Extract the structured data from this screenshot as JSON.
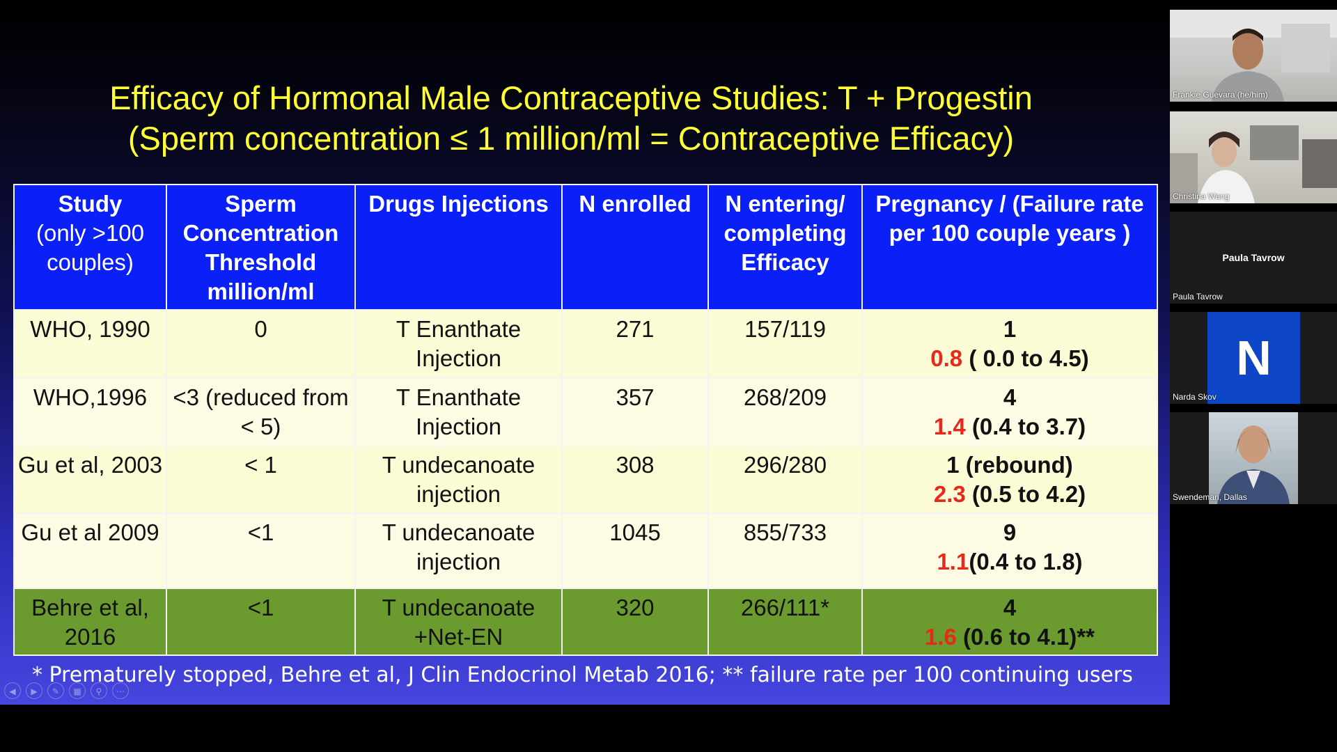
{
  "slide": {
    "title_line1": "Efficacy of Hormonal Male Contraceptive Studies:  T + Progestin",
    "title_line2": "(Sperm concentration  ≤ 1 million/ml = Contraceptive Efficacy)",
    "table": {
      "headers": {
        "study": "Study",
        "study_sub": "(only >100 couples)",
        "sperm": "Sperm Concentration Threshold million/ml",
        "drugs": "Drugs Injections",
        "n_enrolled": "N enrolled",
        "n_entering": "N  entering/ completing Efficacy",
        "pregnancy": "Pregnancy / (Failure  rate  per 100 couple years )"
      },
      "rows": [
        {
          "study": "WHO, 1990",
          "threshold": "0",
          "drug": "T Enanthate Injection",
          "n_enrolled": "271",
          "n_entering": "157/119",
          "pregnancies": "1",
          "rate": "0.8",
          "ci": " ( 0.0 to 4.5)"
        },
        {
          "study": "WHO,1996",
          "threshold": "<3  (reduced from < 5)",
          "drug": "T Enanthate Injection",
          "n_enrolled": "357",
          "n_entering": "268/209",
          "pregnancies": "4",
          "rate": "1.4",
          "ci": " (0.4 to 3.7)"
        },
        {
          "study": "Gu et al, 2003",
          "threshold": "< 1",
          "drug": "T undecanoate injection",
          "n_enrolled": "308",
          "n_entering": "296/280",
          "pregnancies": "1 (rebound)",
          "rate": "2.3",
          "ci": " (0.5 to 4.2)"
        },
        {
          "study": "Gu et al 2009",
          "threshold": "<1",
          "drug": "T undecanoate injection",
          "n_enrolled": "1045",
          "n_entering": "855/733",
          "pregnancies": "9",
          "rate": "1.1",
          "ci": "(0.4 to 1.8)"
        },
        {
          "study": "Behre et al, 2016",
          "threshold": "<1",
          "drug": "T undecanoate +Net-EN",
          "n_enrolled": "320",
          "n_entering": "266/111*",
          "pregnancies": "4",
          "rate": "1.6",
          "ci": " (0.6 to  4.1)**"
        }
      ]
    },
    "footnote": "* Prematurely stopped, Behre et al, J Clin Endocrinol Metab 2016; ** failure rate per 100 continuing users"
  },
  "participants": [
    {
      "name": "Frankie Guevara (he/him)"
    },
    {
      "name": "Christina Wang"
    },
    {
      "name": "Paula Tavrow",
      "display": "Paula Tavrow"
    },
    {
      "name": "Narda Skov",
      "initial": "N"
    },
    {
      "name": "Swendeman, Dallas"
    }
  ],
  "colors": {
    "title": "#ffff33",
    "header_bg": "#0b1ff7",
    "row_light": "#fbfbd6",
    "row_green": "#6b9a2f",
    "rate_red": "#e8281d",
    "avatar_blue": "#0d47c7"
  },
  "icons": [
    "previous-slide-icon",
    "next-slide-icon",
    "pen-icon",
    "slides-grid-icon",
    "zoom-icon",
    "more-options-icon"
  ]
}
